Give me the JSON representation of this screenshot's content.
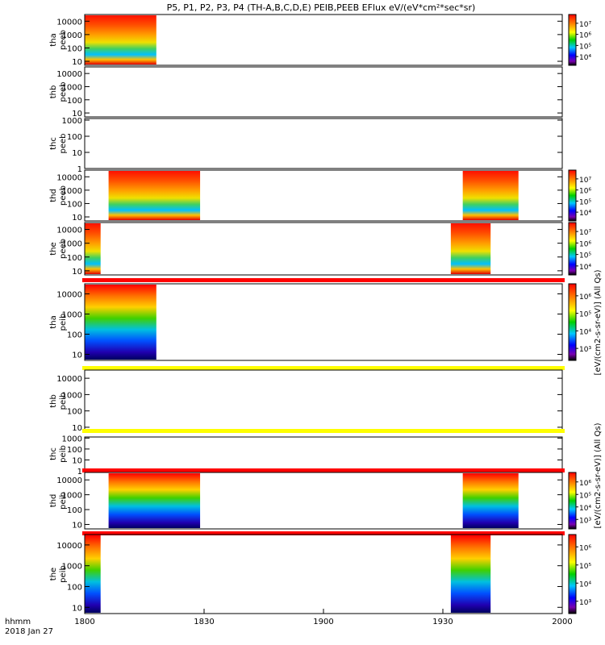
{
  "title": "P5, P1, P2, P3, P4 (TH-A,B,C,D,E) PEIB,PEEB EFlux eV/(eV*cm²*sec*sr)",
  "x_axis": {
    "tick_labels": [
      "1800",
      "1830",
      "1900",
      "1930",
      "2000"
    ],
    "time_label": "hhmm",
    "date_label": "2018 Jan 27"
  },
  "colorbar_labels": {
    "electron": "[eV/(cm2-s-sr-eV)] (All Qs)",
    "ion": "[eV/(cm2-s-sr-eV)] (All Qs)"
  },
  "colors": {
    "axis": "#000000",
    "bar_red": "#ff0000",
    "bar_yellow": "#ffff00"
  },
  "chart_data": {
    "type": "heatmap",
    "x_range_minutes": [
      0,
      120
    ],
    "x_tick_minutes": [
      0,
      30,
      60,
      90,
      120
    ],
    "scale": "log",
    "panels": [
      {
        "id": "tha-peeb",
        "ylabel": [
          "tha",
          "peeb"
        ],
        "yticks": [
          "10",
          "100",
          "1000",
          "10000"
        ],
        "ylog": [
          0.7,
          4.5
        ],
        "bar": null,
        "segments": [
          [
            0,
            18
          ]
        ],
        "colorbar": {
          "ticks": [
            "10⁴",
            "10⁵",
            "10⁶",
            "10⁷"
          ]
        },
        "kind": "electron"
      },
      {
        "id": "thb-peeb",
        "ylabel": [
          "thb",
          "peeb"
        ],
        "yticks": [
          "10",
          "100",
          "1000",
          "10000"
        ],
        "ylog": [
          0.7,
          4.5
        ],
        "bar": null,
        "segments": [],
        "colorbar": null,
        "kind": "electron"
      },
      {
        "id": "thc-peeb",
        "ylabel": [
          "thc",
          "peeb"
        ],
        "yticks": [
          "1",
          "10",
          "100",
          "1000"
        ],
        "ylog": [
          0,
          3.1
        ],
        "bar": null,
        "segments": [],
        "colorbar": null,
        "kind": "electron"
      },
      {
        "id": "thd-peeb",
        "ylabel": [
          "thd",
          "peeb"
        ],
        "yticks": [
          "10",
          "100",
          "1000",
          "10000"
        ],
        "ylog": [
          0.7,
          4.5
        ],
        "bar": null,
        "segments": [
          [
            6,
            29
          ],
          [
            95,
            109
          ]
        ],
        "colorbar": {
          "ticks": [
            "10⁴",
            "10⁵",
            "10⁶",
            "10⁷"
          ]
        },
        "kind": "electron"
      },
      {
        "id": "the-peeb",
        "ylabel": [
          "the",
          "peeb"
        ],
        "yticks": [
          "10",
          "100",
          "1000",
          "10000"
        ],
        "ylog": [
          0.7,
          4.5
        ],
        "bar": null,
        "segments": [
          [
            0,
            4
          ],
          [
            92,
            102
          ]
        ],
        "colorbar": {
          "ticks": [
            "10⁴",
            "10⁵",
            "10⁶",
            "10⁷"
          ]
        },
        "kind": "electron"
      },
      {
        "id": "tha-peib",
        "ylabel": [
          "tha",
          "peib"
        ],
        "yticks": [
          "10",
          "100",
          "1000",
          "10000"
        ],
        "ylog": [
          0.7,
          4.5
        ],
        "bar": "red",
        "segments": [
          [
            0,
            18
          ]
        ],
        "colorbar": {
          "ticks": [
            "10³",
            "10⁴",
            "10⁵",
            "10⁶"
          ]
        },
        "kind": "ion"
      },
      {
        "id": "thb-peib",
        "ylabel": [
          "thb",
          "peib"
        ],
        "yticks": [
          "10",
          "100",
          "1000",
          "10000"
        ],
        "ylog": [
          0.7,
          4.5
        ],
        "bar": "yellow",
        "segments": [],
        "colorbar": null,
        "kind": "ion"
      },
      {
        "id": "thc-peib",
        "ylabel": [
          "thc",
          "peib"
        ],
        "yticks": [
          "1",
          "10",
          "100",
          "1000"
        ],
        "ylog": [
          0,
          3.1
        ],
        "bar": "yellow",
        "segments": [],
        "colorbar": null,
        "kind": "ion"
      },
      {
        "id": "thd-peib",
        "ylabel": [
          "thd",
          "peib"
        ],
        "yticks": [
          "10",
          "100",
          "1000",
          "10000"
        ],
        "ylog": [
          0.7,
          4.5
        ],
        "bar": "red",
        "segments": [
          [
            6,
            29
          ],
          [
            95,
            109
          ]
        ],
        "colorbar": {
          "ticks": [
            "10³",
            "10⁴",
            "10⁵",
            "10⁶"
          ]
        },
        "kind": "ion"
      },
      {
        "id": "the-peib",
        "ylabel": [
          "the",
          "peib"
        ],
        "yticks": [
          "10",
          "100",
          "1000",
          "10000"
        ],
        "ylog": [
          0.7,
          4.5
        ],
        "bar": "red",
        "segments": [
          [
            0,
            4
          ],
          [
            92,
            102
          ]
        ],
        "colorbar": {
          "ticks": [
            "10³",
            "10⁴",
            "10⁵",
            "10⁶"
          ]
        },
        "kind": "ion"
      }
    ]
  }
}
